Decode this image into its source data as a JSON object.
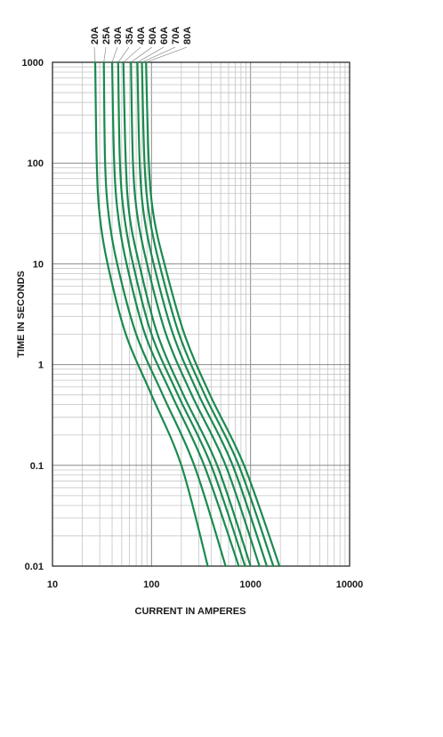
{
  "chart_data": {
    "type": "line",
    "xlabel": "CURRENT IN AMPERES",
    "ylabel": "TIME IN SECONDS",
    "x_scale": "log",
    "y_scale": "log",
    "xlim": [
      10,
      10000
    ],
    "ylim": [
      0.01,
      1000
    ],
    "x_ticks": [
      "10",
      "100",
      "1000",
      "10000"
    ],
    "y_ticks": [
      "0.01",
      "0.1",
      "1",
      "10",
      "100",
      "1000"
    ],
    "grid": true,
    "legend_placement": "top",
    "line_color": "#1a8a4e",
    "series": [
      {
        "name": "20A",
        "points": [
          [
            27,
            1000
          ],
          [
            28,
            100
          ],
          [
            30,
            30
          ],
          [
            36,
            10
          ],
          [
            55,
            2
          ],
          [
            100,
            0.5
          ],
          [
            200,
            0.1
          ],
          [
            370,
            0.01
          ]
        ]
      },
      {
        "name": "25A",
        "points": [
          [
            33,
            1000
          ],
          [
            34,
            100
          ],
          [
            37,
            30
          ],
          [
            45,
            10
          ],
          [
            70,
            2
          ],
          [
            130,
            0.5
          ],
          [
            270,
            0.1
          ],
          [
            560,
            0.01
          ]
        ]
      },
      {
        "name": "30A",
        "points": [
          [
            40,
            1000
          ],
          [
            42,
            100
          ],
          [
            46,
            30
          ],
          [
            56,
            10
          ],
          [
            86,
            2
          ],
          [
            160,
            0.5
          ],
          [
            340,
            0.1
          ],
          [
            760,
            0.01
          ]
        ]
      },
      {
        "name": "35A",
        "points": [
          [
            46,
            1000
          ],
          [
            48,
            100
          ],
          [
            53,
            30
          ],
          [
            65,
            10
          ],
          [
            100,
            2
          ],
          [
            185,
            0.5
          ],
          [
            400,
            0.1
          ],
          [
            880,
            0.01
          ]
        ]
      },
      {
        "name": "40A",
        "points": [
          [
            52,
            1000
          ],
          [
            55,
            100
          ],
          [
            60,
            30
          ],
          [
            75,
            10
          ],
          [
            115,
            2
          ],
          [
            210,
            0.5
          ],
          [
            460,
            0.1
          ],
          [
            1000,
            0.01
          ]
        ]
      },
      {
        "name": "50A",
        "points": [
          [
            62,
            1000
          ],
          [
            65,
            100
          ],
          [
            72,
            30
          ],
          [
            90,
            10
          ],
          [
            140,
            2
          ],
          [
            255,
            0.5
          ],
          [
            560,
            0.1
          ],
          [
            1230,
            0.01
          ]
        ]
      },
      {
        "name": "60A",
        "points": [
          [
            72,
            1000
          ],
          [
            76,
            100
          ],
          [
            84,
            30
          ],
          [
            105,
            10
          ],
          [
            165,
            2
          ],
          [
            300,
            0.5
          ],
          [
            660,
            0.1
          ],
          [
            1460,
            0.01
          ]
        ]
      },
      {
        "name": "70A",
        "points": [
          [
            80,
            1000
          ],
          [
            85,
            100
          ],
          [
            95,
            30
          ],
          [
            120,
            10
          ],
          [
            190,
            2
          ],
          [
            345,
            0.5
          ],
          [
            760,
            0.1
          ],
          [
            1700,
            0.01
          ]
        ]
      },
      {
        "name": "80A",
        "points": [
          [
            88,
            1000
          ],
          [
            94,
            100
          ],
          [
            105,
            30
          ],
          [
            135,
            10
          ],
          [
            215,
            2
          ],
          [
            390,
            0.5
          ],
          [
            860,
            0.1
          ],
          [
            1960,
            0.01
          ]
        ]
      }
    ]
  }
}
